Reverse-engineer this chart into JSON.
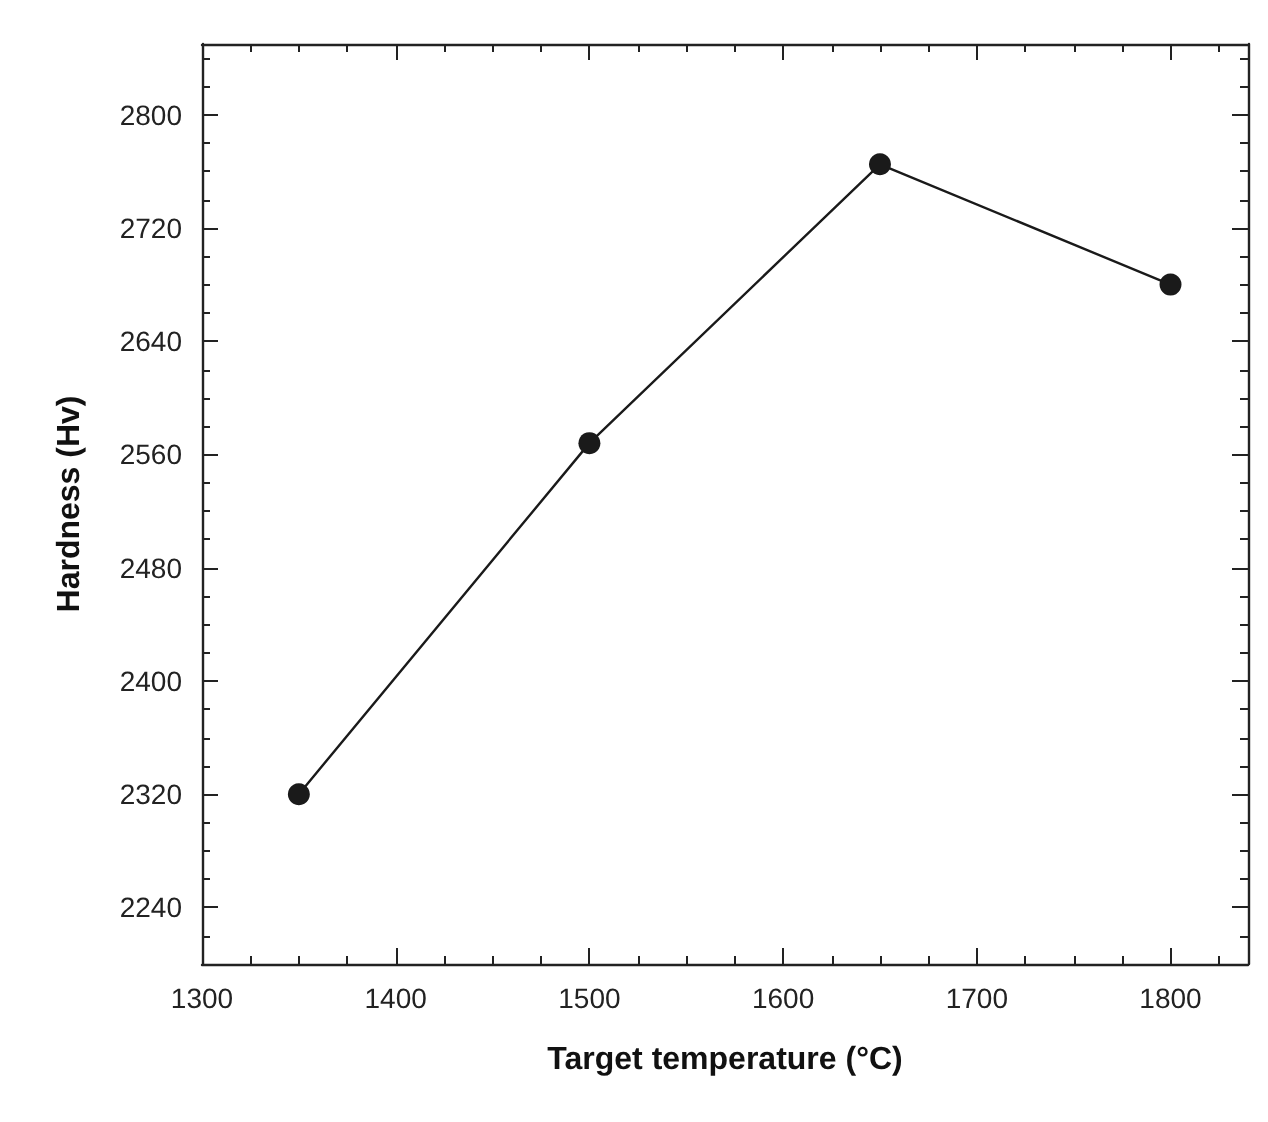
{
  "chart_data": {
    "type": "line",
    "xlabel": "Target temperature (°C)",
    "ylabel": "Hardness (Hv)",
    "x": [
      1350,
      1500,
      1650,
      1800
    ],
    "series": [
      {
        "color": "#1a1a1a",
        "values": [
          2320,
          2568,
          2765,
          2680
        ]
      }
    ],
    "xlim": [
      1300,
      1840
    ],
    "xticks": [
      1300,
      1400,
      1500,
      1600,
      1700,
      1800
    ],
    "ylim": [
      2200,
      2850
    ],
    "yticks": [
      2240,
      2320,
      2400,
      2480,
      2560,
      2640,
      2720,
      2800
    ],
    "marker": "circle",
    "line_style": "solid",
    "grid": false
  }
}
